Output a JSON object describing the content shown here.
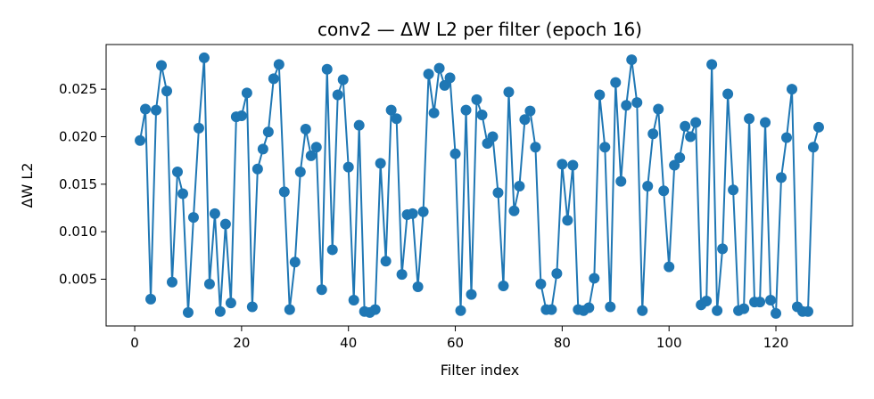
{
  "chart_data": {
    "type": "line",
    "title": "conv2 — ΔW L2 per filter (epoch 16)",
    "xlabel": "Filter index",
    "ylabel": "ΔW L2",
    "xlim": [
      -5.35,
      134.35
    ],
    "ylim": [
      8e-05,
      0.0297
    ],
    "xticks": [
      0,
      20,
      40,
      60,
      80,
      100,
      120
    ],
    "xtick_labels": [
      "0",
      "20",
      "40",
      "60",
      "80",
      "100",
      "120"
    ],
    "yticks": [
      0.005,
      0.01,
      0.015,
      0.02,
      0.025
    ],
    "ytick_labels": [
      "0.005",
      "0.010",
      "0.015",
      "0.020",
      "0.025"
    ],
    "grid": false,
    "legend": "none",
    "series": [
      {
        "color": "#1f77b4",
        "marker": "circle",
        "x": [
          1,
          2,
          3,
          4,
          5,
          6,
          7,
          8,
          9,
          10,
          11,
          12,
          13,
          14,
          15,
          16,
          17,
          18,
          19,
          20,
          21,
          22,
          23,
          24,
          25,
          26,
          27,
          28,
          29,
          30,
          31,
          32,
          33,
          34,
          35,
          36,
          37,
          38,
          39,
          40,
          41,
          42,
          43,
          44,
          45,
          46,
          47,
          48,
          49,
          50,
          51,
          52,
          53,
          54,
          55,
          56,
          57,
          58,
          59,
          60,
          61,
          62,
          63,
          64,
          65,
          66,
          67,
          68,
          69,
          70,
          71,
          72,
          73,
          74,
          75,
          76,
          77,
          78,
          79,
          80,
          81,
          82,
          83,
          84,
          85,
          86,
          87,
          88,
          89,
          90,
          91,
          92,
          93,
          94,
          95,
          96,
          97,
          98,
          99,
          100,
          101,
          102,
          103,
          104,
          105,
          106,
          107,
          108,
          109,
          110,
          111,
          112,
          113,
          114,
          115,
          116,
          117,
          118,
          119,
          120,
          121,
          122,
          123,
          124,
          125,
          126,
          127,
          128
        ],
        "y": [
          0.0196,
          0.0229,
          0.0029,
          0.0228,
          0.0275,
          0.0248,
          0.0047,
          0.0163,
          0.014,
          0.0015,
          0.0115,
          0.0209,
          0.0283,
          0.0045,
          0.0119,
          0.0016,
          0.0108,
          0.0025,
          0.0221,
          0.0222,
          0.0246,
          0.0021,
          0.0166,
          0.0187,
          0.0205,
          0.0261,
          0.0276,
          0.0142,
          0.0018,
          0.0068,
          0.0163,
          0.0208,
          0.018,
          0.0189,
          0.0039,
          0.0271,
          0.0081,
          0.0244,
          0.026,
          0.0168,
          0.0028,
          0.0212,
          0.0016,
          0.0015,
          0.0018,
          0.0172,
          0.0069,
          0.0228,
          0.0219,
          0.0055,
          0.0118,
          0.0119,
          0.0042,
          0.0121,
          0.0266,
          0.0225,
          0.0272,
          0.0254,
          0.0262,
          0.0182,
          0.0017,
          0.0228,
          0.0034,
          0.0239,
          0.0223,
          0.0193,
          0.02,
          0.0141,
          0.0043,
          0.0247,
          0.0122,
          0.0148,
          0.0218,
          0.0227,
          0.0189,
          0.0045,
          0.0018,
          0.0018,
          0.0056,
          0.0171,
          0.0112,
          0.017,
          0.0018,
          0.0017,
          0.002,
          0.0051,
          0.0244,
          0.0189,
          0.0021,
          0.0257,
          0.0153,
          0.0233,
          0.0281,
          0.0236,
          0.0017,
          0.0148,
          0.0203,
          0.0229,
          0.0143,
          0.0063,
          0.017,
          0.0178,
          0.0211,
          0.02,
          0.0215,
          0.0023,
          0.0027,
          0.0276,
          0.0017,
          0.0082,
          0.0245,
          0.0144,
          0.0017,
          0.0019,
          0.0219,
          0.0026,
          0.0026,
          0.0215,
          0.0028,
          0.0014,
          0.0157,
          0.0199,
          0.025,
          0.0021,
          0.0016,
          0.0016,
          0.0189,
          0.021
        ]
      }
    ]
  }
}
